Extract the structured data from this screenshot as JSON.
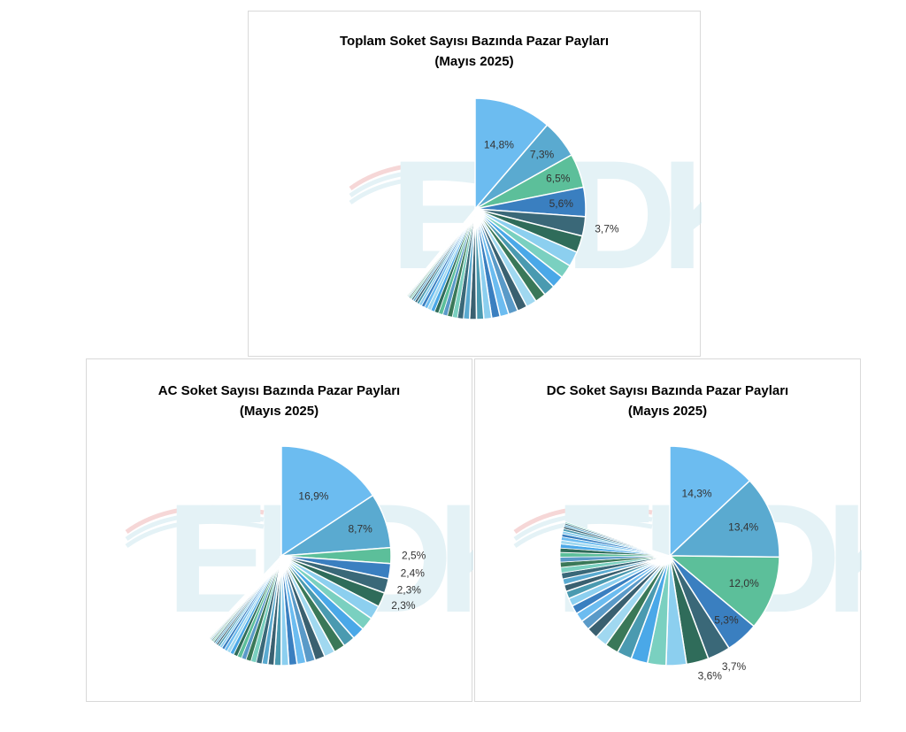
{
  "colors": {
    "palette": [
      "#6cbcf0",
      "#5aaad0",
      "#5cbf9a",
      "#3a7fc0",
      "#3a6878",
      "#2f6c5a",
      "#8ccfef",
      "#7ad0c0",
      "#4aa8e8",
      "#4a9ab0",
      "#3a7858",
      "#a0d8f0",
      "#3a6070",
      "#5a9ac8"
    ],
    "watermark": "#cfe8f0",
    "watermark_arc": "#f0b8b8"
  },
  "watermark": {
    "text": "EPDK"
  },
  "charts": [
    {
      "title_line1": "Toplam Soket Sayısı Bazında Pazar Payları",
      "title_line2": "(Mayıs 2025)",
      "chart_data": {
        "type": "pie",
        "unit": "%",
        "title": "Toplam Soket Sayısı Bazında Pazar Payları (Mayıs 2025)",
        "labeled_values": [
          14.8,
          7.3,
          6.5,
          5.6,
          3.7
        ],
        "labels": [
          "14,8%",
          "7,3%",
          "6,5%",
          "5,6%",
          "3,7%"
        ],
        "other_values": [
          3.2,
          2.9,
          2.6,
          2.4,
          2.2,
          2.1,
          2.0,
          1.9,
          1.8,
          1.7,
          1.6,
          1.5,
          1.4,
          1.3,
          1.2,
          1.1,
          1.0,
          0.95,
          0.9,
          0.85,
          0.8,
          0.75,
          0.7,
          0.65,
          0.6,
          0.55,
          0.5,
          0.45,
          0.4,
          0.35,
          0.3,
          0.25,
          0.2,
          0.18,
          0.15,
          0.12,
          0.1,
          0.1,
          0.1,
          0.1
        ],
        "visible_span_percent": 61
      }
    },
    {
      "title_line1": "AC Soket Sayısı Bazında Pazar Payları",
      "title_line2": "(Mayıs 2025)",
      "chart_data": {
        "type": "pie",
        "unit": "%",
        "title": "AC Soket Sayısı Bazında Pazar Payları (Mayıs 2025)",
        "labeled_values": [
          16.9,
          8.7,
          2.5,
          2.4,
          2.3,
          2.3
        ],
        "labels": [
          "16,9%",
          "8,7%",
          "2,5%",
          "2,4%",
          "2,3%",
          "2,3%"
        ],
        "other_values": [
          2.2,
          2.1,
          2.0,
          1.9,
          1.8,
          1.7,
          1.6,
          1.5,
          1.4,
          1.3,
          1.2,
          1.1,
          1.0,
          0.95,
          0.9,
          0.85,
          0.8,
          0.75,
          0.7,
          0.65,
          0.6,
          0.55,
          0.5,
          0.45,
          0.4,
          0.35,
          0.3,
          0.28,
          0.25,
          0.22,
          0.2,
          0.18,
          0.15,
          0.13,
          0.12,
          0.1,
          0.1,
          0.1,
          0.1,
          0.1
        ],
        "visible_span_percent": 62
      }
    },
    {
      "title_line1": "DC Soket Sayısı Bazında Pazar Payları",
      "title_line2": "(Mayıs 2025)",
      "chart_data": {
        "type": "pie",
        "unit": "%",
        "title": "DC Soket Sayısı Bazında Pazar Payları (Mayıs 2025)",
        "labeled_values": [
          14.3,
          13.4,
          12.0,
          5.3,
          3.7,
          3.6
        ],
        "labels": [
          "14,3%",
          "13,4%",
          "12,0%",
          "5,3%",
          "3,7%",
          "3,6%"
        ],
        "other_values": [
          3.3,
          3.0,
          2.7,
          2.4,
          2.2,
          2.0,
          1.8,
          1.6,
          1.5,
          1.4,
          1.3,
          1.2,
          1.1,
          1.0,
          0.95,
          0.9,
          0.85,
          0.8,
          0.75,
          0.7,
          0.65,
          0.6,
          0.55,
          0.5,
          0.45,
          0.4,
          0.35,
          0.3,
          0.25,
          0.2
        ],
        "visible_span_percent": 80
      }
    }
  ]
}
